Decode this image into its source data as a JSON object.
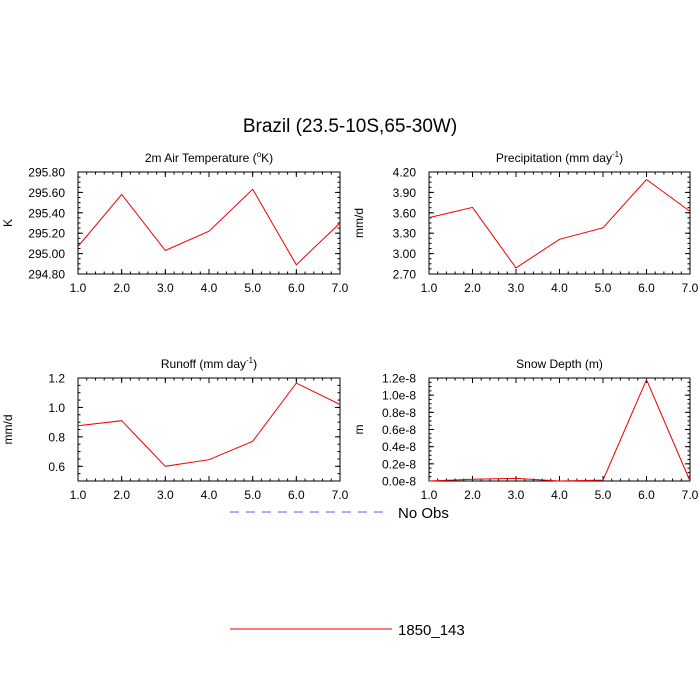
{
  "title": "Brazil (23.5-10S,65-30W)",
  "legend": {
    "items": [
      {
        "label": "No Obs",
        "color": "#5555ff",
        "style": "dashed"
      },
      {
        "label": "1850_143",
        "color": "#ee0000",
        "style": "solid"
      }
    ]
  },
  "chart_data": [
    {
      "type": "line",
      "title_main": "2m Air Temperature (",
      "title_sup": "o",
      "title_tail": "K)",
      "ylabel": "K",
      "x": [
        1,
        2,
        3,
        4,
        5,
        6,
        7
      ],
      "xlim": [
        1,
        7
      ],
      "ylim": [
        294.8,
        295.8
      ],
      "xticks": [
        1,
        2,
        3,
        4,
        5,
        6,
        7
      ],
      "xtick_labels": [
        "1.0",
        "2.0",
        "3.0",
        "4.0",
        "5.0",
        "6.0",
        "7.0"
      ],
      "yticks": [
        294.8,
        295.0,
        295.2,
        295.4,
        295.6,
        295.8
      ],
      "ytick_labels": [
        "294.80",
        "295.00",
        "295.20",
        "295.40",
        "295.60",
        "295.80"
      ],
      "yminor_step": 0.05,
      "series": [
        {
          "name": "1850_143",
          "color": "#ee0000",
          "values": [
            295.07,
            295.58,
            295.03,
            295.22,
            295.63,
            294.89,
            295.3
          ]
        }
      ]
    },
    {
      "type": "line",
      "title_main": "Precipitation (mm day",
      "title_sup": "-1",
      "title_tail": ")",
      "ylabel": "mm/d",
      "x": [
        1,
        2,
        3,
        4,
        5,
        6,
        7
      ],
      "xlim": [
        1,
        7
      ],
      "ylim": [
        2.7,
        4.2
      ],
      "xticks": [
        1,
        2,
        3,
        4,
        5,
        6,
        7
      ],
      "xtick_labels": [
        "1.0",
        "2.0",
        "3.0",
        "4.0",
        "5.0",
        "6.0",
        "7.0"
      ],
      "yticks": [
        2.7,
        3.0,
        3.3,
        3.6,
        3.9,
        4.2
      ],
      "ytick_labels": [
        "2.70",
        "3.00",
        "3.30",
        "3.60",
        "3.90",
        "4.20"
      ],
      "yminor_step": 0.075,
      "series": [
        {
          "name": "1850_143",
          "color": "#ee0000",
          "values": [
            3.53,
            3.68,
            2.79,
            3.21,
            3.38,
            4.09,
            3.62
          ]
        }
      ]
    },
    {
      "type": "line",
      "title_main": "Runoff (mm day",
      "title_sup": "-1",
      "title_tail": ")",
      "ylabel": "mm/d",
      "x": [
        1,
        2,
        3,
        4,
        5,
        6,
        7
      ],
      "xlim": [
        1,
        7
      ],
      "ylim": [
        0.5,
        1.2
      ],
      "xticks": [
        1,
        2,
        3,
        4,
        5,
        6,
        7
      ],
      "xtick_labels": [
        "1.0",
        "2.0",
        "3.0",
        "4.0",
        "5.0",
        "6.0",
        "7.0"
      ],
      "yticks": [
        0.6,
        0.8,
        1.0,
        1.2
      ],
      "ytick_labels": [
        "0.6",
        "0.8",
        "1.0",
        "1.2"
      ],
      "yminor_step": 0.05,
      "series": [
        {
          "name": "1850_143",
          "color": "#ee0000",
          "values": [
            0.875,
            0.91,
            0.6,
            0.645,
            0.77,
            1.165,
            1.02
          ]
        }
      ]
    },
    {
      "type": "line",
      "title_main": "Snow Depth (m)",
      "title_sup": "",
      "title_tail": "",
      "ylabel": "m",
      "x": [
        1,
        2,
        3,
        4,
        5,
        6,
        7
      ],
      "xlim": [
        1,
        7
      ],
      "ylim": [
        0,
        1.2e-08
      ],
      "xticks": [
        1,
        2,
        3,
        4,
        5,
        6,
        7
      ],
      "xtick_labels": [
        "1.0",
        "2.0",
        "3.0",
        "4.0",
        "5.0",
        "6.0",
        "7.0"
      ],
      "yticks": [
        0,
        2e-09,
        4e-09,
        6e-09,
        8e-09,
        1e-08,
        1.2e-08
      ],
      "ytick_labels": [
        "0.0e-8",
        "0.2e-8",
        "0.4e-8",
        "0.6e-8",
        "0.8e-8",
        "1.0e-8",
        "1.2e-8"
      ],
      "yminor_step": 5e-10,
      "series": [
        {
          "name": "1850_143",
          "color": "#ee0000",
          "values": [
            0.0,
            2e-10,
            3e-10,
            0.0,
            1e-10,
            1.18e-08,
            0.0
          ]
        }
      ]
    }
  ]
}
